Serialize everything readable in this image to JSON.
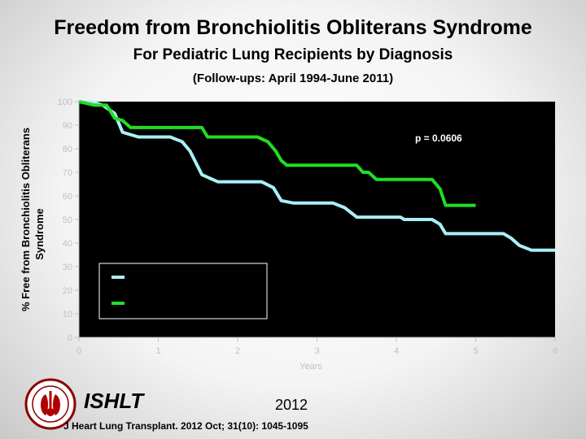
{
  "title": "Freedom from Bronchiolitis Obliterans Syndrome",
  "subtitle": "For Pediatric Lung Recipients by Diagnosis",
  "followup": "(Follow-ups: April 1994-June 2011)",
  "footer": {
    "org": "ISHLT",
    "year": "2012",
    "citation": "J Heart Lung Transplant. 2012 Oct; 31(10): 1045-1095"
  },
  "colors": {
    "series_cf": "#a8f0f5",
    "series_ipah": "#22dd22",
    "plot_bg": "#000000",
    "axis_text": "#c0c0c0"
  },
  "chart_data": {
    "type": "line",
    "title": "Freedom from Bronchiolitis Obliterans Syndrome",
    "ylabel_lines": [
      "% Free from Bronchiolitis Obliterans",
      "Syndrome"
    ],
    "xlabel": "Years",
    "xlim": [
      0,
      6
    ],
    "ylim": [
      0,
      100
    ],
    "xticks": [
      0,
      1,
      2,
      3,
      4,
      5,
      6
    ],
    "yticks": [
      0,
      10,
      20,
      30,
      40,
      50,
      60,
      70,
      80,
      90,
      100
    ],
    "annotation": "p = 0.0606",
    "grid": false,
    "legend_placement": "lower-left",
    "series": [
      {
        "color": "#a8f0f5",
        "points": [
          [
            0,
            100
          ],
          [
            0.2,
            99.5
          ],
          [
            0.3,
            98.5
          ],
          [
            0.45,
            95
          ],
          [
            0.55,
            87
          ],
          [
            0.75,
            85
          ],
          [
            1.15,
            85
          ],
          [
            1.3,
            83
          ],
          [
            1.4,
            79
          ],
          [
            1.55,
            69
          ],
          [
            1.75,
            66
          ],
          [
            2.3,
            66
          ],
          [
            2.45,
            63.5
          ],
          [
            2.55,
            58
          ],
          [
            2.7,
            57
          ],
          [
            3.2,
            57
          ],
          [
            3.35,
            55
          ],
          [
            3.5,
            51
          ],
          [
            4.05,
            51
          ],
          [
            4.1,
            50
          ],
          [
            4.45,
            50
          ],
          [
            4.55,
            48
          ],
          [
            4.62,
            44
          ],
          [
            5.35,
            44
          ],
          [
            5.45,
            42
          ],
          [
            5.55,
            39
          ],
          [
            5.7,
            37
          ],
          [
            6,
            37
          ]
        ]
      },
      {
        "color": "#22dd22",
        "points": [
          [
            0,
            100
          ],
          [
            0.2,
            98.5
          ],
          [
            0.35,
            98.5
          ],
          [
            0.45,
            93
          ],
          [
            0.55,
            92
          ],
          [
            0.65,
            89
          ],
          [
            1.55,
            89
          ],
          [
            1.62,
            85
          ],
          [
            2.25,
            85
          ],
          [
            2.38,
            83
          ],
          [
            2.48,
            79
          ],
          [
            2.55,
            75
          ],
          [
            2.62,
            73
          ],
          [
            3.5,
            73
          ],
          [
            3.58,
            70
          ],
          [
            3.65,
            70
          ],
          [
            3.75,
            67
          ],
          [
            4.45,
            67
          ],
          [
            4.55,
            63
          ],
          [
            4.62,
            56
          ],
          [
            5.0,
            56
          ]
        ]
      }
    ]
  }
}
